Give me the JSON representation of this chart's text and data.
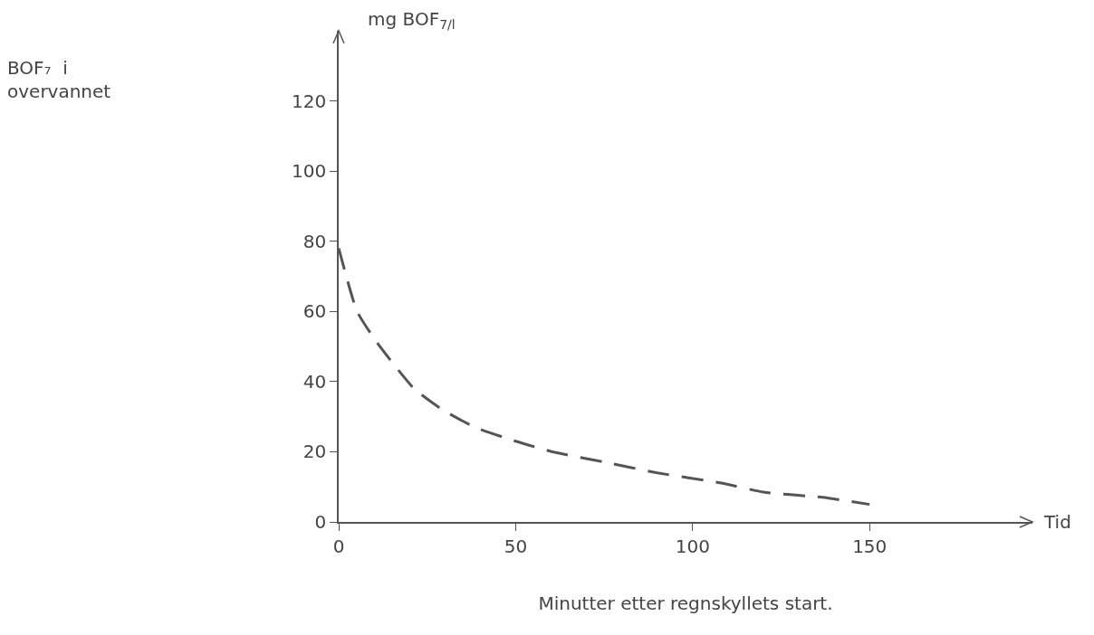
{
  "chart_data": {
    "type": "line",
    "xlabel": "Minutter etter regnskyllets start.",
    "ylabel": "mg BOF$_{7/l}$",
    "annotations": [
      "BOF₇  i\novervannet",
      "Tid"
    ],
    "x": [
      0,
      5.2,
      10.9,
      21.3,
      29.3,
      38.5,
      50,
      60.4,
      75.3,
      90,
      108.5,
      120,
      136.7,
      150
    ],
    "series": [
      {
        "color": "#555555",
        "line_style": "dashed",
        "values": [
          78,
          60,
          51,
          38,
          32,
          27,
          23,
          20,
          17,
          14,
          11,
          8.5,
          7,
          5
        ]
      }
    ],
    "xlim": [
      0,
      196
    ],
    "ylim": [
      0,
      140
    ],
    "xticks": [
      0,
      50,
      100,
      150
    ],
    "yticks": [
      0,
      20,
      40,
      60,
      80,
      100,
      120
    ],
    "grid": false,
    "marker": "none"
  }
}
